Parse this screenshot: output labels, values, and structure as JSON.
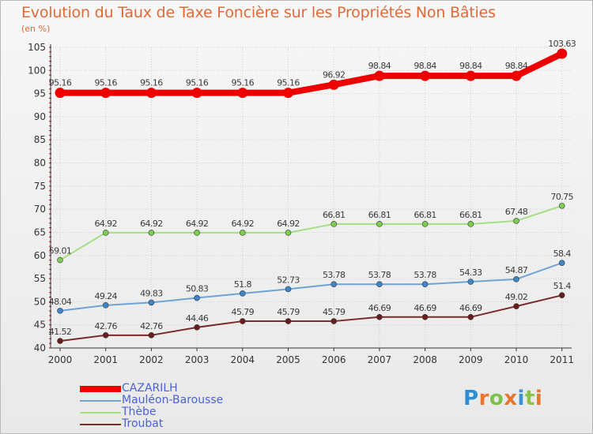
{
  "title": "Evolution du Taux de Taxe Foncière sur les Propriétés Non Bâties",
  "unit_label": "(en %)",
  "logo": {
    "text": "Proxiti",
    "letter_colors": [
      "#2c8ed6",
      "#e7762f",
      "#7cc24a",
      "#e7762f",
      "#3a8fd6",
      "#8bc34a",
      "#e7762f"
    ]
  },
  "chart_data": {
    "type": "line",
    "title": "Evolution du Taux de Taxe Foncière sur les Propriétés Non Bâties",
    "ylabel": "(en %)",
    "xlabel": "",
    "x": [
      "2000",
      "2001",
      "2002",
      "2003",
      "2004",
      "2005",
      "2006",
      "2007",
      "2008",
      "2009",
      "2010",
      "2011"
    ],
    "ylim": [
      40,
      105
    ],
    "yticks": [
      "40",
      "45",
      "50",
      "55",
      "60",
      "65",
      "70",
      "75",
      "80",
      "85",
      "90",
      "95",
      "100",
      "105"
    ],
    "grid": true,
    "legend_position": "bottom-left",
    "series": [
      {
        "name": "CAZARILH",
        "color": "#ee0000",
        "point_color": "#ee0000",
        "values": [
          95.16,
          95.16,
          95.16,
          95.16,
          95.16,
          95.16,
          96.92,
          98.84,
          98.84,
          98.84,
          98.84,
          103.63
        ],
        "labels": [
          "95.16",
          "95.16",
          "95.16",
          "95.16",
          "95.16",
          "95.16",
          "96.92",
          "98.84",
          "98.84",
          "98.84",
          "98.84",
          "103.63"
        ],
        "emphasis": true
      },
      {
        "name": "Mauléon-Barousse",
        "color": "#6fa3d6",
        "point_color": "#3e86c9",
        "values": [
          48.04,
          49.24,
          49.83,
          50.83,
          51.8,
          52.73,
          53.78,
          53.78,
          53.78,
          54.33,
          54.87,
          58.4
        ],
        "labels": [
          "48.04",
          "49.24",
          "49.83",
          "50.83",
          "51.8",
          "52.73",
          "53.78",
          "53.78",
          "53.78",
          "54.33",
          "54.87",
          "58.4"
        ],
        "emphasis": false
      },
      {
        "name": "Thèbe",
        "color": "#a6de84",
        "point_color": "#7ccf4e",
        "values": [
          59.01,
          64.92,
          64.92,
          64.92,
          64.92,
          64.92,
          66.81,
          66.81,
          66.81,
          66.81,
          67.48,
          70.75
        ],
        "labels": [
          "59.01",
          "64.92",
          "64.92",
          "64.92",
          "64.92",
          "64.92",
          "66.81",
          "66.81",
          "66.81",
          "66.81",
          "67.48",
          "70.75"
        ],
        "emphasis": false
      },
      {
        "name": "Troubat",
        "color": "#7a2b2b",
        "point_color": "#6b1c1c",
        "values": [
          41.52,
          42.76,
          42.76,
          44.46,
          45.79,
          45.79,
          45.79,
          46.69,
          46.69,
          46.69,
          49.02,
          51.4
        ],
        "labels": [
          "41.52",
          "42.76",
          "42.76",
          "44.46",
          "45.79",
          "45.79",
          "45.79",
          "46.69",
          "46.69",
          "46.69",
          "49.02",
          "51.4"
        ],
        "emphasis": false
      }
    ]
  },
  "colors": {
    "title": "#e06a3a",
    "legend_text": "#4a63d8",
    "axis": "#333333",
    "grid": "#cfcfcf",
    "tick_marks": "#cc0000"
  }
}
